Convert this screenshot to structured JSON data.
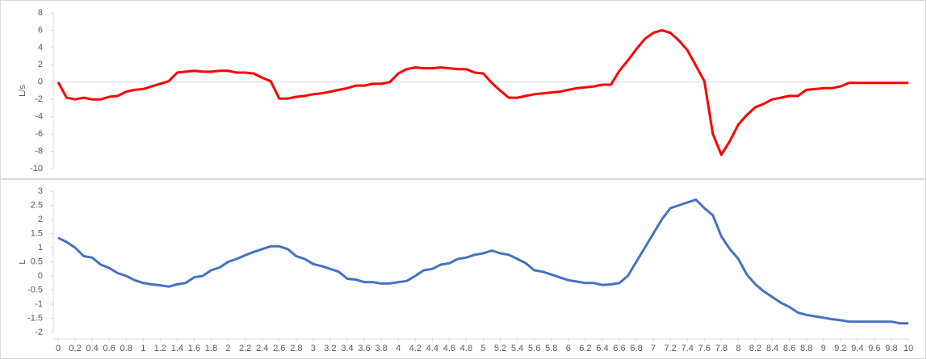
{
  "chart_data": [
    {
      "type": "line",
      "y_label": "L/s",
      "color": "#ff0000",
      "values": [
        0,
        -1.8,
        -2.0,
        -1.8,
        -2.0,
        -2.0,
        -1.7,
        -1.6,
        -1.1,
        -0.9,
        -0.8,
        -0.5,
        -0.2,
        0.1,
        1.1,
        1.2,
        1.3,
        1.2,
        1.2,
        1.3,
        1.3,
        1.1,
        1.1,
        1.0,
        0.5,
        0.1,
        -1.9,
        -1.9,
        -1.7,
        -1.6,
        -1.4,
        -1.3,
        -1.1,
        -0.9,
        -0.7,
        -0.4,
        -0.4,
        -0.2,
        -0.2,
        0.0,
        1.0,
        1.5,
        1.7,
        1.6,
        1.6,
        1.7,
        1.6,
        1.5,
        1.5,
        1.1,
        1.0,
        -0.1,
        -1.0,
        -1.8,
        -1.8,
        -1.6,
        -1.4,
        -1.3,
        -1.2,
        -1.1,
        -0.9,
        -0.7,
        -0.6,
        -0.5,
        -0.3,
        -0.3,
        1.3,
        2.5,
        3.8,
        5.0,
        5.7,
        6.0,
        5.7,
        4.8,
        3.7,
        1.9,
        0.1,
        -6.0,
        -8.4,
        -6.8,
        -4.9,
        -3.8,
        -2.9,
        -2.5,
        -2.0,
        -1.8,
        -1.6,
        -1.6,
        -0.9,
        -0.8,
        -0.7,
        -0.7,
        -0.5,
        -0.1,
        -0.1,
        -0.1,
        -0.1,
        -0.1,
        -0.1,
        -0.1,
        -0.1
      ],
      "ylim": [
        -10,
        8
      ],
      "yticks": [
        -10,
        -8,
        -6,
        -4,
        -2,
        0,
        2,
        4,
        6,
        8
      ]
    },
    {
      "type": "line",
      "y_label": "L",
      "color": "#4472c4",
      "x": [
        0,
        0.1,
        0.2,
        0.3,
        0.4,
        0.5,
        0.6,
        0.7,
        0.8,
        0.9,
        1,
        1.1,
        1.2,
        1.3,
        1.4,
        1.5,
        1.6,
        1.7,
        1.8,
        1.9,
        2,
        2.1,
        2.2,
        2.3,
        2.4,
        2.5,
        2.6,
        2.7,
        2.8,
        2.9,
        3,
        3.1,
        3.2,
        3.3,
        3.4,
        3.5,
        3.6,
        3.7,
        3.8,
        3.9,
        4,
        4.1,
        4.2,
        4.3,
        4.4,
        4.5,
        4.6,
        4.7,
        4.8,
        4.9,
        5,
        5.1,
        5.2,
        5.3,
        5.4,
        5.5,
        5.6,
        5.7,
        5.8,
        5.9,
        6,
        6.1,
        6.2,
        6.3,
        6.4,
        6.5,
        6.6,
        6.7,
        6.8,
        6.9,
        7,
        7.1,
        7.2,
        7.3,
        7.4,
        7.5,
        7.6,
        7.7,
        7.8,
        7.9,
        8,
        8.1,
        8.2,
        8.3,
        8.4,
        8.5,
        8.6,
        8.7,
        8.8,
        8.9,
        9,
        9.1,
        9.2,
        9.3,
        9.4,
        9.5,
        9.6,
        9.7,
        9.8,
        9.9,
        10
      ],
      "values": [
        1.35,
        1.2,
        1.0,
        0.7,
        0.65,
        0.4,
        0.28,
        0.1,
        0.0,
        -0.15,
        -0.25,
        -0.3,
        -0.33,
        -0.38,
        -0.3,
        -0.25,
        -0.05,
        0.0,
        0.2,
        0.3,
        0.5,
        0.6,
        0.73,
        0.85,
        0.95,
        1.05,
        1.05,
        0.95,
        0.7,
        0.6,
        0.42,
        0.35,
        0.25,
        0.15,
        -0.1,
        -0.13,
        -0.22,
        -0.22,
        -0.27,
        -0.27,
        -0.22,
        -0.18,
        0.0,
        0.2,
        0.25,
        0.4,
        0.45,
        0.6,
        0.65,
        0.75,
        0.8,
        0.9,
        0.8,
        0.75,
        0.6,
        0.45,
        0.2,
        0.15,
        0.05,
        -0.05,
        -0.15,
        -0.2,
        -0.25,
        -0.25,
        -0.32,
        -0.3,
        -0.25,
        0.0,
        0.5,
        1.0,
        1.5,
        2.0,
        2.4,
        2.5,
        2.6,
        2.7,
        2.4,
        2.15,
        1.4,
        0.95,
        0.6,
        0.05,
        -0.3,
        -0.55,
        -0.75,
        -0.95,
        -1.1,
        -1.3,
        -1.38,
        -1.43,
        -1.48,
        -1.53,
        -1.57,
        -1.62,
        -1.62,
        -1.62,
        -1.62,
        -1.62,
        -1.62,
        -1.68,
        -1.68
      ],
      "ylim": [
        -2,
        3
      ],
      "yticks": [
        -2,
        -1.5,
        -1,
        -0.5,
        0,
        0.5,
        1,
        1.5,
        2,
        2.5,
        3
      ],
      "xlim": [
        0,
        10
      ],
      "xticks": [
        0,
        0.2,
        0.4,
        0.6,
        0.8,
        1,
        1.2,
        1.4,
        1.6,
        1.8,
        2,
        2.2,
        2.4,
        2.6,
        2.8,
        3,
        3.2,
        3.4,
        3.6,
        3.8,
        4,
        4.2,
        4.4,
        4.6,
        4.8,
        5,
        5.2,
        5.4,
        5.6,
        5.8,
        6,
        6.2,
        6.4,
        6.6,
        6.8,
        7,
        7.2,
        7.4,
        7.6,
        7.8,
        8,
        8.2,
        8.4,
        8.6,
        8.8,
        9,
        9.2,
        9.4,
        9.6,
        9.8,
        10
      ]
    }
  ]
}
